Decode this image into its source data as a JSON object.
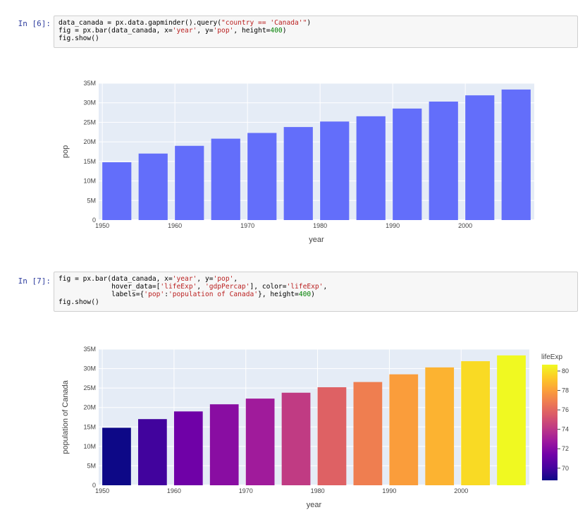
{
  "cells": [
    {
      "prompt": "In [6]:",
      "code": [
        [
          [
            "plain",
            "data_canada = px.data.gapminder().query("
          ],
          [
            "str",
            "\"country == 'Canada'\""
          ],
          [
            "plain",
            ")"
          ]
        ],
        [
          [
            "plain",
            "fig = px.bar(data_canada, x="
          ],
          [
            "str",
            "'year'"
          ],
          [
            "plain",
            ", y="
          ],
          [
            "str",
            "'pop'"
          ],
          [
            "plain",
            ", height="
          ],
          [
            "num",
            "400"
          ],
          [
            "plain",
            ")"
          ]
        ],
        [
          [
            "plain",
            "fig.show()"
          ]
        ]
      ]
    },
    {
      "prompt": "In [7]:",
      "code": [
        [
          [
            "plain",
            "fig = px.bar(data_canada, x="
          ],
          [
            "str",
            "'year'"
          ],
          [
            "plain",
            ", y="
          ],
          [
            "str",
            "'pop'"
          ],
          [
            "plain",
            ","
          ]
        ],
        [
          [
            "plain",
            "             hover_data=["
          ],
          [
            "str",
            "'lifeExp'"
          ],
          [
            "plain",
            ", "
          ],
          [
            "str",
            "'gdpPercap'"
          ],
          [
            "plain",
            "], color="
          ],
          [
            "str",
            "'lifeExp'"
          ],
          [
            "plain",
            ","
          ]
        ],
        [
          [
            "plain",
            "             labels={"
          ],
          [
            "str",
            "'pop'"
          ],
          [
            "plain",
            ":"
          ],
          [
            "str",
            "'population of Canada'"
          ],
          [
            "plain",
            "}, height="
          ],
          [
            "num",
            "400"
          ],
          [
            "plain",
            ")"
          ]
        ],
        [
          [
            "plain",
            "fig.show()"
          ]
        ]
      ]
    }
  ],
  "chart_data": [
    {
      "type": "bar",
      "x": [
        1952,
        1957,
        1962,
        1967,
        1972,
        1977,
        1982,
        1987,
        1992,
        1997,
        2002,
        2007
      ],
      "values": [
        14785584,
        17010154,
        18985849,
        20819767,
        22284500,
        23796400,
        25201900,
        26549700,
        28523502,
        30305843,
        31902268,
        33390141
      ],
      "xlabel": "year",
      "ylabel": "pop",
      "ylim": [
        0,
        35000000
      ],
      "yticks": [
        "0",
        "5M",
        "10M",
        "15M",
        "20M",
        "25M",
        "30M",
        "35M"
      ],
      "xticks": [
        "1950",
        "1960",
        "1970",
        "1980",
        "1990",
        "2000"
      ],
      "bar_color": "#636efa",
      "plot_bg": "#e5ecf6"
    },
    {
      "type": "bar",
      "x": [
        1952,
        1957,
        1962,
        1967,
        1972,
        1977,
        1982,
        1987,
        1992,
        1997,
        2002,
        2007
      ],
      "values": [
        14785584,
        17010154,
        18985849,
        20819767,
        22284500,
        23796400,
        25201900,
        26549700,
        28523502,
        30305843,
        31902268,
        33390141
      ],
      "color_values": [
        68.75,
        69.96,
        71.3,
        72.13,
        72.88,
        74.21,
        75.76,
        76.86,
        77.95,
        78.61,
        79.77,
        80.653
      ],
      "xlabel": "year",
      "ylabel": "population of Canada",
      "ylim": [
        0,
        35000000
      ],
      "yticks": [
        "0",
        "5M",
        "10M",
        "15M",
        "20M",
        "25M",
        "30M",
        "35M"
      ],
      "xticks": [
        "1950",
        "1960",
        "1970",
        "1980",
        "1990",
        "2000"
      ],
      "colorbar": {
        "title": "lifeExp",
        "range": [
          68.75,
          80.653
        ],
        "ticks": [
          "70",
          "72",
          "74",
          "76",
          "78",
          "80"
        ],
        "colors": [
          "#0d0887",
          "#46039f",
          "#7201a8",
          "#9c179e",
          "#bd3786",
          "#d8576b",
          "#ed7953",
          "#fb9f3a",
          "#fdca26",
          "#f0f921"
        ]
      },
      "plot_bg": "#e5ecf6"
    }
  ]
}
